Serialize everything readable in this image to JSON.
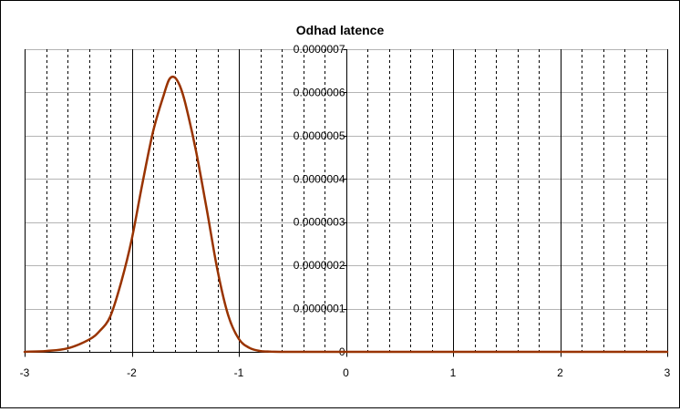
{
  "chart_data": {
    "type": "line",
    "title": "Odhad latence",
    "xlabel": "",
    "ylabel": "",
    "xlim": [
      -3,
      3
    ],
    "ylim": [
      0,
      7e-07
    ],
    "x_ticks": [
      -3,
      -2,
      -1,
      0,
      1,
      2,
      3
    ],
    "x_tick_labels": [
      "-3",
      "-2",
      "-1",
      "0",
      "1",
      "2",
      "3"
    ],
    "y_ticks": [
      0,
      1e-07,
      2e-07,
      3e-07,
      4e-07,
      5e-07,
      6e-07,
      7e-07
    ],
    "y_tick_labels": [
      "0",
      "0.0000001",
      "0.0000002",
      "0.0000003",
      "0.0000004",
      "0.0000005",
      "0.0000006",
      "0.0000007"
    ],
    "x_minor_step": 0.2,
    "grid": "major solid, minor dashed vertical, horizontal solid",
    "legend": "none",
    "series": [
      {
        "color": "#993300",
        "x": [
          -3.0,
          -2.8,
          -2.6,
          -2.4,
          -2.3,
          -2.2,
          -2.1,
          -2.0,
          -1.9,
          -1.8,
          -1.7,
          -1.65,
          -1.6,
          -1.55,
          -1.5,
          -1.4,
          -1.3,
          -1.2,
          -1.1,
          -1.0,
          -0.9,
          -0.8,
          -0.7,
          -0.6,
          -0.5,
          0.0,
          0.5,
          1.0,
          1.5,
          2.0,
          2.5,
          3.0
        ],
        "y": [
          0.0,
          2e-09,
          8e-09,
          2.8e-08,
          4.8e-08,
          8.2e-08,
          1.6e-07,
          2.6e-07,
          3.9e-07,
          5.1e-07,
          5.95e-07,
          6.3e-07,
          6.35e-07,
          6.15e-07,
          5.75e-07,
          4.65e-07,
          3.3e-07,
          1.9e-07,
          8.5e-08,
          3e-08,
          9e-09,
          2e-09,
          5e-10,
          0.0,
          0.0,
          0.0,
          0.0,
          0.0,
          0.0,
          0.0,
          0.0,
          0.0
        ]
      }
    ]
  }
}
